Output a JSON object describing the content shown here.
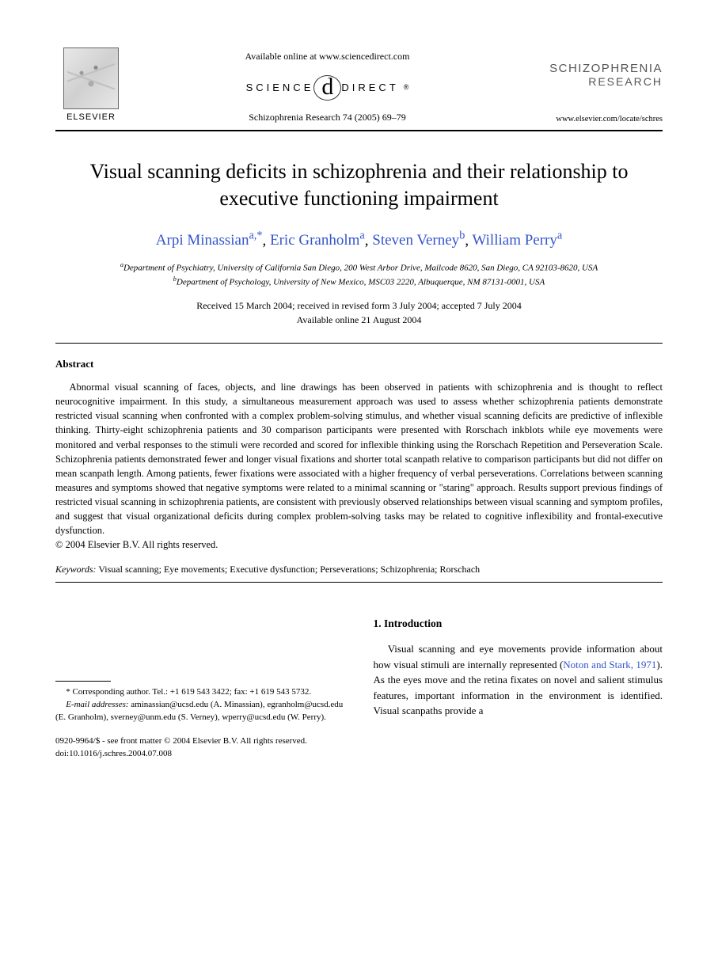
{
  "header": {
    "publisher_name": "ELSEVIER",
    "available_online": "Available online at www.sciencedirect.com",
    "sciencedirect_left": "SCIENCE",
    "sciencedirect_d": "d",
    "sciencedirect_right": "DIRECT",
    "sciencedirect_reg": "®",
    "citation": "Schizophrenia Research 74 (2005) 69–79",
    "journal_line1": "SCHIZOPHRENIA",
    "journal_line2": "RESEARCH",
    "journal_url": "www.elsevier.com/locate/schres"
  },
  "title": "Visual scanning deficits in schizophrenia and their relationship to executive functioning impairment",
  "authors": {
    "a1_name": "Arpi Minassian",
    "a1_sup": "a,*",
    "a2_name": "Eric Granholm",
    "a2_sup": "a",
    "a3_name": "Steven Verney",
    "a3_sup": "b",
    "a4_name": "William Perry",
    "a4_sup": "a"
  },
  "affiliations": {
    "a_sup": "a",
    "a_text": "Department of Psychiatry, University of California San Diego, 200 West Arbor Drive, Mailcode 8620, San Diego, CA 92103-8620, USA",
    "b_sup": "b",
    "b_text": "Department of Psychology, University of New Mexico, MSC03 2220, Albuquerque, NM 87131-0001, USA"
  },
  "dates": {
    "line1": "Received 15 March 2004; received in revised form 3 July 2004; accepted 7 July 2004",
    "line2": "Available online 21 August 2004"
  },
  "abstract": {
    "heading": "Abstract",
    "body": "Abnormal visual scanning of faces, objects, and line drawings has been observed in patients with schizophrenia and is thought to reflect neurocognitive impairment. In this study, a simultaneous measurement approach was used to assess whether schizophrenia patients demonstrate restricted visual scanning when confronted with a complex problem-solving stimulus, and whether visual scanning deficits are predictive of inflexible thinking. Thirty-eight schizophrenia patients and 30 comparison participants were presented with Rorschach inkblots while eye movements were monitored and verbal responses to the stimuli were recorded and scored for inflexible thinking using the Rorschach Repetition and Perseveration Scale. Schizophrenia patients demonstrated fewer and longer visual fixations and shorter total scanpath relative to comparison participants but did not differ on mean scanpath length. Among patients, fewer fixations were associated with a higher frequency of verbal perseverations. Correlations between scanning measures and symptoms showed that negative symptoms were related to a minimal scanning or \"staring\" approach. Results support previous findings of restricted visual scanning in schizophrenia patients, are consistent with previously observed relationships between visual scanning and symptom profiles, and suggest that visual organizational deficits during complex problem-solving tasks may be related to cognitive inflexibility and frontal-executive dysfunction.",
    "copyright": "© 2004 Elsevier B.V. All rights reserved."
  },
  "keywords": {
    "label": "Keywords:",
    "text": " Visual scanning; Eye movements; Executive dysfunction; Perseverations; Schizophrenia; Rorschach"
  },
  "footnotes": {
    "corr_label": "* Corresponding author. Tel.: +1 619 543 3422; fax: +1 619 543 5732.",
    "email_label": "E-mail addresses:",
    "emails": " aminassian@ucsd.edu (A. Minassian), egranholm@ucsd.edu (E. Granholm), sverney@unm.edu (S. Verney), wperry@ucsd.edu (W. Perry)."
  },
  "doi": {
    "line1": "0920-9964/$ - see front matter © 2004 Elsevier B.V. All rights reserved.",
    "line2": "doi:10.1016/j.schres.2004.07.008"
  },
  "intro": {
    "heading": "1. Introduction",
    "body_pre": "Visual scanning and eye movements provide information about how visual stimuli are internally represented (",
    "cite": "Noton and Stark, 1971",
    "body_post": "). As the eyes move and the retina fixates on novel and salient stimulus features, important information in the environment is identified. Visual scanpaths provide a"
  },
  "colors": {
    "link": "#3355cc",
    "text": "#000000",
    "journal_gray": "#555555"
  }
}
